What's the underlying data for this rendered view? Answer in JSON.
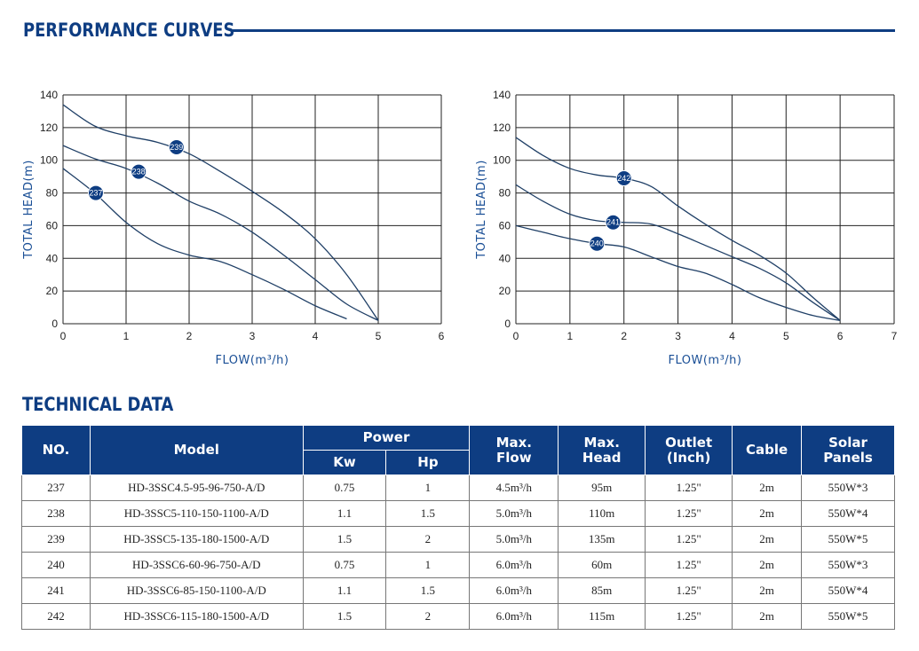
{
  "header": {
    "title": "PERFORMANCE CURVES"
  },
  "tech": {
    "title": "TECHNICAL DATA"
  },
  "chart_data": [
    {
      "type": "line",
      "xlabel": "FLOW(m³/h)",
      "ylabel": "TOTAL HEAD(m)",
      "xlim": [
        0,
        6
      ],
      "ylim": [
        0,
        140
      ],
      "xticks": [
        "0",
        "1",
        "2",
        "3",
        "4",
        "5",
        "6"
      ],
      "yticks": [
        "0",
        "20",
        "40",
        "60",
        "80",
        "100",
        "120",
        "140"
      ],
      "series": [
        {
          "name": "237",
          "marker_at": [
            0.52,
            80
          ],
          "points": [
            [
              0,
              95
            ],
            [
              0.5,
              80
            ],
            [
              1,
              62
            ],
            [
              1.5,
              49
            ],
            [
              2,
              42
            ],
            [
              2.5,
              38
            ],
            [
              3,
              30
            ],
            [
              3.5,
              21
            ],
            [
              4,
              11
            ],
            [
              4.5,
              3
            ]
          ]
        },
        {
          "name": "238",
          "marker_at": [
            1.2,
            93
          ],
          "points": [
            [
              0,
              109
            ],
            [
              0.5,
              101
            ],
            [
              1,
              95
            ],
            [
              1.5,
              86
            ],
            [
              2,
              75
            ],
            [
              2.5,
              67
            ],
            [
              3,
              56
            ],
            [
              3.5,
              42
            ],
            [
              4,
              27
            ],
            [
              4.5,
              12
            ],
            [
              5,
              2
            ]
          ]
        },
        {
          "name": "239",
          "marker_at": [
            1.8,
            108
          ],
          "points": [
            [
              0,
              134
            ],
            [
              0.5,
              121
            ],
            [
              1,
              115
            ],
            [
              1.5,
              111
            ],
            [
              2,
              104
            ],
            [
              2.5,
              93
            ],
            [
              3,
              81
            ],
            [
              3.5,
              68
            ],
            [
              4,
              52
            ],
            [
              4.5,
              30
            ],
            [
              5,
              2
            ]
          ]
        }
      ]
    },
    {
      "type": "line",
      "xlabel": "FLOW(m³/h)",
      "ylabel": "TOTAL HEAD(m)",
      "xlim": [
        0,
        7
      ],
      "ylim": [
        0,
        140
      ],
      "xticks": [
        "0",
        "1",
        "2",
        "3",
        "4",
        "5",
        "6",
        "7"
      ],
      "yticks": [
        "0",
        "20",
        "40",
        "60",
        "80",
        "100",
        "120",
        "140"
      ],
      "series": [
        {
          "name": "240",
          "marker_at": [
            1.5,
            49
          ],
          "points": [
            [
              0,
              60
            ],
            [
              0.5,
              56
            ],
            [
              1,
              52
            ],
            [
              1.5,
              49
            ],
            [
              2,
              47
            ],
            [
              2.5,
              41
            ],
            [
              3,
              35
            ],
            [
              3.5,
              31
            ],
            [
              4,
              24
            ],
            [
              4.5,
              16
            ],
            [
              5,
              10
            ],
            [
              5.5,
              5
            ],
            [
              6,
              2
            ]
          ]
        },
        {
          "name": "241",
          "marker_at": [
            1.8,
            62
          ],
          "points": [
            [
              0,
              85
            ],
            [
              0.5,
              75
            ],
            [
              1,
              67
            ],
            [
              1.5,
              63
            ],
            [
              2,
              62
            ],
            [
              2.5,
              61
            ],
            [
              3,
              55
            ],
            [
              3.5,
              48
            ],
            [
              4,
              41
            ],
            [
              4.5,
              34
            ],
            [
              5,
              25
            ],
            [
              5.5,
              13
            ],
            [
              6,
              2
            ]
          ]
        },
        {
          "name": "242",
          "marker_at": [
            2.0,
            89
          ],
          "points": [
            [
              0,
              114
            ],
            [
              0.5,
              103
            ],
            [
              1,
              95
            ],
            [
              1.5,
              91
            ],
            [
              2,
              89
            ],
            [
              2.5,
              84
            ],
            [
              3,
              72
            ],
            [
              3.5,
              61
            ],
            [
              4,
              51
            ],
            [
              4.5,
              42
            ],
            [
              5,
              31
            ],
            [
              5.5,
              16
            ],
            [
              6,
              2
            ]
          ]
        }
      ]
    }
  ],
  "table": {
    "headers": {
      "no": "NO.",
      "model": "Model",
      "power": "Power",
      "kw": "Kw",
      "hp": "Hp",
      "max_flow_1": "Max.",
      "max_flow_2": "Flow",
      "max_head_1": "Max.",
      "max_head_2": "Head",
      "outlet_1": "Outlet",
      "outlet_2": "(Inch)",
      "cable": "Cable",
      "solar_1": "Solar",
      "solar_2": "Panels"
    },
    "rows": [
      [
        "237",
        "HD-3SSC4.5-95-96-750-A/D",
        "0.75",
        "1",
        "4.5m³/h",
        "95m",
        "1.25\"",
        "2m",
        "550W*3"
      ],
      [
        "238",
        "HD-3SSC5-110-150-1100-A/D",
        "1.1",
        "1.5",
        "5.0m³/h",
        "110m",
        "1.25\"",
        "2m",
        "550W*4"
      ],
      [
        "239",
        "HD-3SSC5-135-180-1500-A/D",
        "1.5",
        "2",
        "5.0m³/h",
        "135m",
        "1.25\"",
        "2m",
        "550W*5"
      ],
      [
        "240",
        "HD-3SSC6-60-96-750-A/D",
        "0.75",
        "1",
        "6.0m³/h",
        "60m",
        "1.25\"",
        "2m",
        "550W*3"
      ],
      [
        "241",
        "HD-3SSC6-85-150-1100-A/D",
        "1.1",
        "1.5",
        "6.0m³/h",
        "85m",
        "1.25\"",
        "2m",
        "550W*4"
      ],
      [
        "242",
        "HD-3SSC6-115-180-1500-A/D",
        "1.5",
        "2",
        "6.0m³/h",
        "115m",
        "1.25\"",
        "2m",
        "550W*5"
      ]
    ]
  },
  "colors": {
    "brand": "#0e3d82",
    "curve": "#1f3f66",
    "marker": "#0e3d82"
  }
}
